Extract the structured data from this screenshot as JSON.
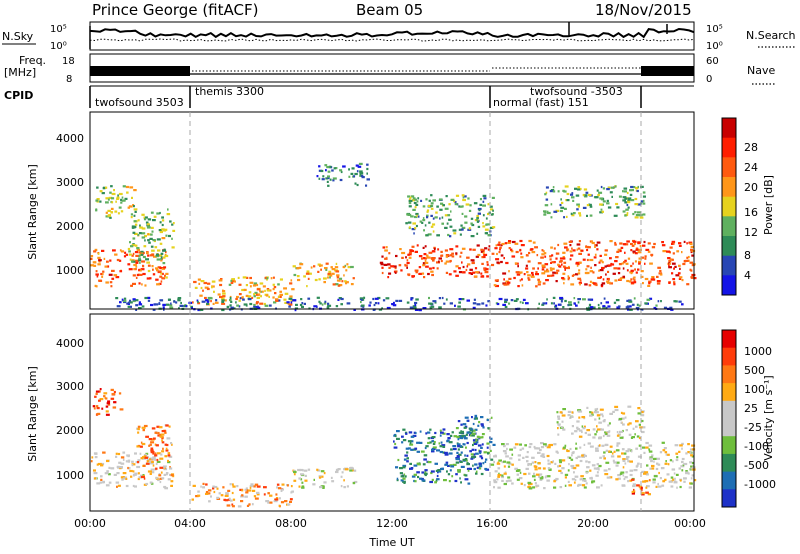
{
  "header": {
    "station": "Prince George (fitACF)",
    "beam": "Beam 05",
    "date": "18/Nov/2015"
  },
  "summary_panels": {
    "nsky_label": "N.Sky",
    "nsearch_label": "N.Search",
    "freq_label_line1": "Freq.",
    "freq_label_line2": "[MHz]",
    "nave_label": "Nave",
    "cpid_label": "CPID",
    "noise_left_ticks": [
      "10^5",
      "10^0"
    ],
    "noise_right_ticks": [
      "10^5",
      "10^0"
    ],
    "freq_left_ticks": [
      "18",
      "8"
    ],
    "freq_right_ticks": [
      "60",
      "0"
    ]
  },
  "cpid_segments": [
    {
      "name": "twofsound 3503",
      "start": 0,
      "end": 4
    },
    {
      "name": "themis 3300",
      "start": 4,
      "end": 16
    },
    {
      "name": "normal (fast) 151",
      "start": 16,
      "end": 22
    },
    {
      "name": "twofsound -3503",
      "start": 22,
      "end": 24
    }
  ],
  "chart_data": [
    {
      "type": "heatmap",
      "name": "power",
      "ylabel": "Slant Range [km]",
      "xlabel": "Time UT",
      "xlim": [
        0,
        24
      ],
      "ylim": [
        180,
        4500
      ],
      "y_ticks": [
        "4000",
        "3000",
        "2000",
        "1000"
      ],
      "x_ticks": [
        "00:00",
        "04:00",
        "08:00",
        "12:00",
        "16:00",
        "20:00",
        "00:00"
      ],
      "colorbar_label": "Power [dB]",
      "colorbar_ticks": [
        "28",
        "24",
        "20",
        "16",
        "12",
        "8",
        "4"
      ],
      "colors": [
        "#1414e6",
        "#2846b4",
        "#2e8b57",
        "#5fb05f",
        "#e6d21e",
        "#ff9619",
        "#ff5a0f",
        "#ff1e00",
        "#c80000"
      ],
      "regions": [
        {
          "t0": 0.0,
          "t1": 3.0,
          "r0": 700,
          "r1": 1500,
          "level": 0.72
        },
        {
          "t0": 0.2,
          "t1": 1.8,
          "r0": 2200,
          "r1": 2900,
          "level": 0.45
        },
        {
          "t0": 1.5,
          "t1": 3.3,
          "r0": 1200,
          "r1": 2400,
          "level": 0.4
        },
        {
          "t0": 4.0,
          "t1": 8.0,
          "r0": 300,
          "r1": 900,
          "level": 0.6
        },
        {
          "t0": 8.0,
          "t1": 10.5,
          "r0": 700,
          "r1": 1200,
          "level": 0.55
        },
        {
          "t0": 9.0,
          "t1": 11.0,
          "r0": 2900,
          "r1": 3400,
          "level": 0.25
        },
        {
          "t0": 11.5,
          "t1": 16.0,
          "r0": 900,
          "r1": 1600,
          "level": 0.8
        },
        {
          "t0": 12.5,
          "t1": 16.0,
          "r0": 1800,
          "r1": 2700,
          "level": 0.35
        },
        {
          "t0": 16.0,
          "t1": 24.0,
          "r0": 700,
          "r1": 1700,
          "level": 0.75
        },
        {
          "t0": 18.0,
          "t1": 22.0,
          "r0": 2200,
          "r1": 2900,
          "level": 0.35
        },
        {
          "t0": 1.0,
          "t1": 23.5,
          "r0": 180,
          "r1": 450,
          "level": 0.2
        }
      ]
    },
    {
      "type": "heatmap",
      "name": "velocity",
      "ylabel": "Slant Range [km]",
      "xlabel": "Time UT",
      "xlim": [
        0,
        24
      ],
      "ylim": [
        180,
        4500
      ],
      "y_ticks": [
        "4000",
        "3000",
        "2000",
        "1000"
      ],
      "x_ticks": [
        "00:00",
        "04:00",
        "08:00",
        "12:00",
        "16:00",
        "20:00",
        "00:00"
      ],
      "colorbar_label": "Velocity [m s⁻¹]",
      "colorbar_ticks": [
        "1000",
        "500",
        "100",
        "25",
        "-25",
        "-100",
        "-500",
        "-1000"
      ],
      "colors": [
        "#1e32c8",
        "#1e6eb4",
        "#2e8b57",
        "#6ebe3c",
        "#c8c8c8",
        "#c8c8c8",
        "#ffaa14",
        "#ff7814",
        "#ff3c0a",
        "#e60000"
      ],
      "regions": [
        {
          "t0": 0.0,
          "t1": 3.2,
          "r0": 700,
          "r1": 1500,
          "level": 0.55
        },
        {
          "t0": 1.8,
          "t1": 3.3,
          "r0": 900,
          "r1": 2100,
          "level": 0.72
        },
        {
          "t0": 0.1,
          "t1": 1.2,
          "r0": 2300,
          "r1": 2900,
          "level": 0.82
        },
        {
          "t0": 4.0,
          "t1": 8.0,
          "r0": 300,
          "r1": 800,
          "level": 0.66
        },
        {
          "t0": 8.0,
          "t1": 10.5,
          "r0": 700,
          "r1": 1150,
          "level": 0.5
        },
        {
          "t0": 12.0,
          "t1": 15.5,
          "r0": 800,
          "r1": 2000,
          "level": 0.2
        },
        {
          "t0": 14.5,
          "t1": 16.0,
          "r0": 1000,
          "r1": 2300,
          "level": 0.2
        },
        {
          "t0": 16.0,
          "t1": 24.0,
          "r0": 700,
          "r1": 1700,
          "level": 0.5
        },
        {
          "t0": 18.5,
          "t1": 22.0,
          "r0": 1800,
          "r1": 2500,
          "level": 0.5
        },
        {
          "t0": 21.5,
          "t1": 22.3,
          "r0": 500,
          "r1": 900,
          "level": 0.8
        }
      ]
    }
  ]
}
